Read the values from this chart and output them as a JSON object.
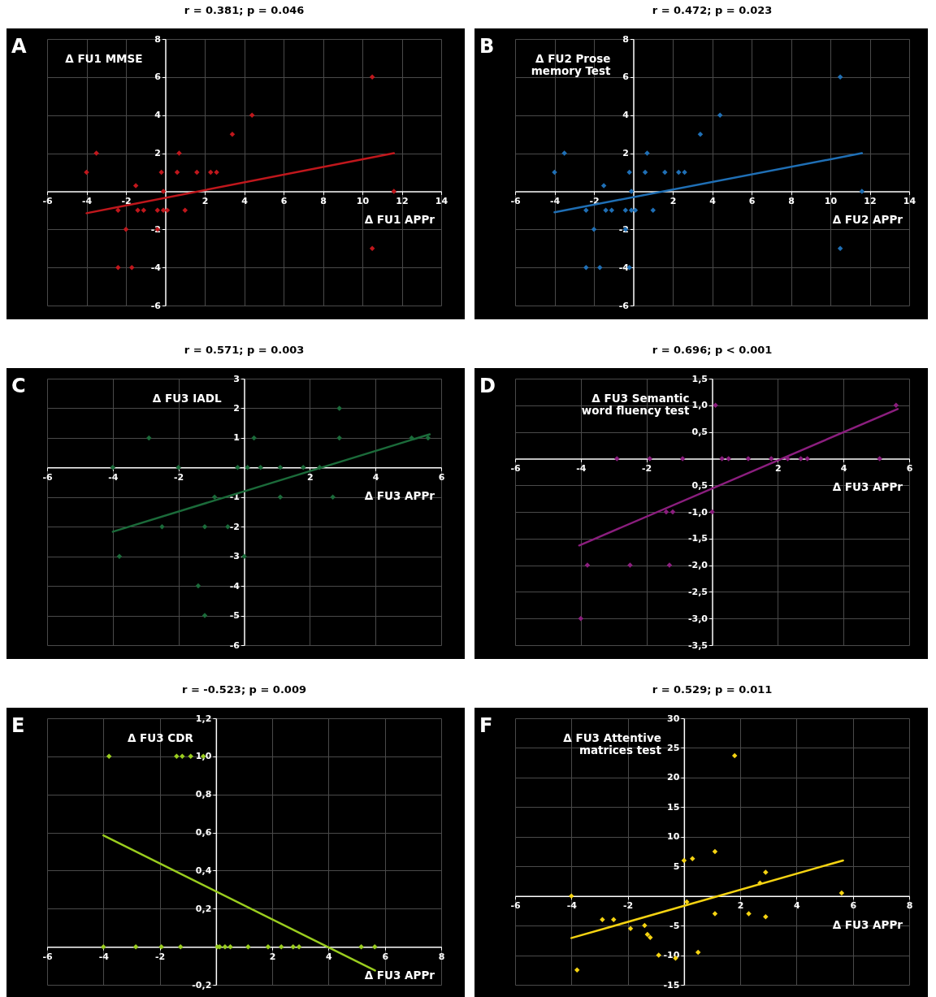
{
  "chart_data": [
    {
      "type": "scatter",
      "title": "r = 0.381; p = 0.046",
      "xlabel": "Δ FU1 APPr",
      "ylabel": "Δ FU1 MMSE",
      "annotations": [
        "A"
      ],
      "xlim": [
        -6,
        14
      ],
      "ylim": [
        -6,
        8
      ],
      "xticks": [
        -6,
        -4,
        -2,
        2,
        4,
        6,
        8,
        10,
        12,
        14
      ],
      "yticks": [
        -6,
        -4,
        -2,
        2,
        4,
        6,
        8
      ],
      "grid": true,
      "series": [
        {
          "marker": "diamond",
          "color": "#c0171c",
          "x": [
            -4,
            -3.5,
            -1.5,
            -0.2,
            -0.1,
            0.6,
            0.7,
            1.6,
            2.3,
            2.6,
            3.4,
            4.4,
            10.5,
            11.6,
            10.5,
            -2.4,
            -1.4,
            -1.1,
            -0.4,
            -0.1,
            0.1,
            1,
            -2,
            -0.4,
            -2.4,
            -1.7
          ],
          "values": [
            1,
            2,
            0.3,
            1,
            0,
            1,
            2,
            1,
            1,
            1,
            3,
            4,
            6,
            0,
            -3,
            -1,
            -1,
            -1,
            -1,
            -1,
            -1,
            -1,
            -2,
            -2,
            -4,
            -4
          ]
        },
        {
          "type": "line",
          "color": "#c0171c",
          "x": [
            -4,
            11.6
          ],
          "values": [
            -1.15,
            2
          ]
        }
      ]
    },
    {
      "type": "scatter",
      "title": "r = 0.472; p = 0.023",
      "xlabel": "Δ FU2 APPr",
      "ylabel": "Δ FU2 Prose memory Test",
      "annotations": [
        "B"
      ],
      "xlim": [
        -6,
        14
      ],
      "ylim": [
        -6,
        8
      ],
      "xticks": [
        -6,
        -4,
        -2,
        2,
        4,
        6,
        8,
        10,
        12,
        14
      ],
      "yticks": [
        -6,
        -4,
        -2,
        2,
        4,
        6,
        8
      ],
      "grid": true,
      "series": [
        {
          "marker": "diamond",
          "color": "#1f6fb5",
          "x": [
            -4,
            -3.5,
            -1.5,
            -0.2,
            -0.1,
            0.6,
            0.7,
            1.6,
            2.3,
            2.6,
            3.4,
            4.4,
            10.5,
            11.6,
            10.5,
            -2.4,
            -1.4,
            -1.1,
            -0.4,
            -0.1,
            0.1,
            1,
            -2,
            -0.4,
            -2.4,
            -1.7,
            -0.2
          ],
          "values": [
            1,
            2,
            0.3,
            1,
            0,
            1,
            2,
            1,
            1,
            1,
            3,
            4,
            6,
            0,
            -3,
            -1,
            -1,
            -1,
            -1,
            -1,
            -1,
            -1,
            -2,
            -2,
            -4,
            -4,
            -4
          ]
        },
        {
          "type": "line",
          "color": "#1f6fb5",
          "x": [
            -4,
            11.6
          ],
          "values": [
            -1.1,
            2
          ]
        }
      ]
    },
    {
      "type": "scatter",
      "title": "r = 0.571; p = 0.003",
      "xlabel": "Δ FU3 APPr",
      "ylabel": "Δ FU3 IADL",
      "annotations": [
        "C"
      ],
      "xlim": [
        -6,
        6
      ],
      "ylim": [
        -6,
        3
      ],
      "xticks": [
        -6,
        -4,
        -2,
        2,
        4,
        6
      ],
      "yticks": [
        -6,
        -5,
        -4,
        -3,
        -2,
        -1,
        1,
        2,
        3
      ],
      "grid": true,
      "series": [
        {
          "marker": "diamond",
          "color": "#1b6b3a",
          "x": [
            -4,
            -2.9,
            -2,
            -0.2,
            0.1,
            0.3,
            0.5,
            1.1,
            1.8,
            2.3,
            2.9,
            2.9,
            5.1,
            5.6,
            -0.9,
            1.1,
            2.7,
            -2.5,
            -1.2,
            -0.5,
            -3.8,
            0,
            -1.4,
            -1.2
          ],
          "values": [
            0,
            1,
            0,
            0,
            0,
            1,
            0,
            0,
            0,
            0,
            2,
            1,
            1,
            1,
            -1,
            -1,
            -1,
            -2,
            -2,
            -2,
            -3,
            -3,
            -4,
            -5
          ]
        },
        {
          "type": "line",
          "color": "#1b6b3a",
          "x": [
            -4,
            5.65
          ],
          "values": [
            -2.17,
            1.12
          ]
        }
      ]
    },
    {
      "type": "scatter",
      "title": "r = 0.696; p < 0.001",
      "xlabel": "Δ FU3 APPr",
      "ylabel": "Δ FU3 Semantic word fluency test",
      "annotations": [
        "D"
      ],
      "xlim": [
        -6,
        6
      ],
      "ylim": [
        -3.5,
        1.5
      ],
      "xticks": [
        -6,
        -4,
        -2,
        2,
        4,
        6
      ],
      "yticks": [
        {
          "value": -3.5,
          "label": "-3,5"
        },
        {
          "value": -3,
          "label": "-3,0"
        },
        {
          "value": -2.5,
          "label": "-2,5"
        },
        {
          "value": -2,
          "label": "-2,0"
        },
        {
          "value": -1.5,
          "label": "-1,5"
        },
        {
          "value": -1,
          "label": "-1,0"
        },
        {
          "value": -0.5,
          "label": "0,5"
        },
        {
          "value": 0.5,
          "label": "0,5"
        },
        {
          "value": 1,
          "label": "1,0"
        },
        {
          "value": 1.5,
          "label": "1,5"
        }
      ],
      "grid": true,
      "series": [
        {
          "marker": "diamond",
          "color": "#8b1e7e",
          "x": [
            -2.9,
            -1.9,
            -0.9,
            0.3,
            0.5,
            1.1,
            1.8,
            2.3,
            2.7,
            2.9,
            5.1,
            0.1,
            5.6,
            -1.4,
            -1.2,
            0,
            -3.8,
            -2.5,
            -1.3,
            -4
          ],
          "values": [
            0,
            0,
            0,
            0,
            0,
            0,
            0,
            0,
            0,
            0,
            0,
            1,
            1,
            -1,
            -1,
            -1,
            -2,
            -2,
            -2,
            -3
          ]
        },
        {
          "type": "line",
          "color": "#8b1e7e",
          "x": [
            -4.05,
            5.65
          ],
          "values": [
            -1.63,
            0.93
          ]
        }
      ]
    },
    {
      "type": "scatter",
      "title": "r = -0.523; p = 0.009",
      "xlabel": "Δ FU3 APPr",
      "ylabel": "Δ FU3 CDR",
      "annotations": [
        "E"
      ],
      "xlim": [
        -6,
        8
      ],
      "ylim": [
        -0.2,
        1.2
      ],
      "xticks": [
        -6,
        -4,
        -2,
        2,
        4,
        6,
        8
      ],
      "yticks": [
        {
          "value": -0.2,
          "label": "-0,2"
        },
        {
          "value": 0.2,
          "label": "0,2"
        },
        {
          "value": 0.4,
          "label": "0,4"
        },
        {
          "value": 0.6,
          "label": "0,6"
        },
        {
          "value": 0.8,
          "label": "0,8"
        },
        {
          "value": 1,
          "label": "1,0"
        },
        {
          "value": 1.2,
          "label": "1,2"
        }
      ],
      "grid": true,
      "series": [
        {
          "marker": "diamond",
          "color": "#9acd1f",
          "x": [
            -3.8,
            -1.4,
            -1.2,
            -0.9,
            -0.45,
            -4,
            -2.85,
            -1.94,
            -1.26,
            0.05,
            0.13,
            0.32,
            0.51,
            1.14,
            1.85,
            2.32,
            2.74,
            2.95,
            5.16,
            5.64
          ],
          "values": [
            1,
            1,
            1,
            1,
            1,
            0,
            0,
            0,
            0,
            0,
            0,
            0,
            0,
            0,
            0,
            0,
            0,
            0,
            0,
            0
          ]
        },
        {
          "type": "line",
          "color": "#9acd1f",
          "x": [
            -4,
            5.65
          ],
          "values": [
            0.585,
            -0.125
          ]
        }
      ]
    },
    {
      "type": "scatter",
      "title": "r = 0.529; p = 0.011",
      "xlabel": "Δ FU3 APPr",
      "ylabel": "Δ FU3 Attentive matrices test",
      "annotations": [
        "F"
      ],
      "xlim": [
        -6,
        8
      ],
      "ylim": [
        -15,
        30
      ],
      "xticks": [
        -6,
        -4,
        -2,
        2,
        4,
        6,
        8
      ],
      "yticks": [
        -15,
        -10,
        -5,
        5,
        10,
        15,
        20,
        25,
        30
      ],
      "grid": true,
      "series": [
        {
          "marker": "diamond",
          "color": "#f5d312",
          "x": [
            -4,
            -3.8,
            -2.9,
            -2.5,
            -1.9,
            -1.4,
            -1.3,
            -1.2,
            -0.9,
            -0.3,
            0,
            0.1,
            0.3,
            0.5,
            1.1,
            1.1,
            1.8,
            2.3,
            2.7,
            2.9,
            2.9,
            5.6
          ],
          "values": [
            0,
            -12.5,
            -4,
            -4,
            -5.5,
            -5,
            -6.5,
            -7,
            -10,
            -10.5,
            6,
            -1,
            6.3,
            -9.5,
            7.5,
            -3,
            23.7,
            -3,
            2.2,
            4,
            -3.5,
            0.5
          ]
        },
        {
          "type": "line",
          "color": "#f5d312",
          "x": [
            -4,
            5.65
          ],
          "values": [
            -7.1,
            6
          ]
        }
      ]
    }
  ]
}
